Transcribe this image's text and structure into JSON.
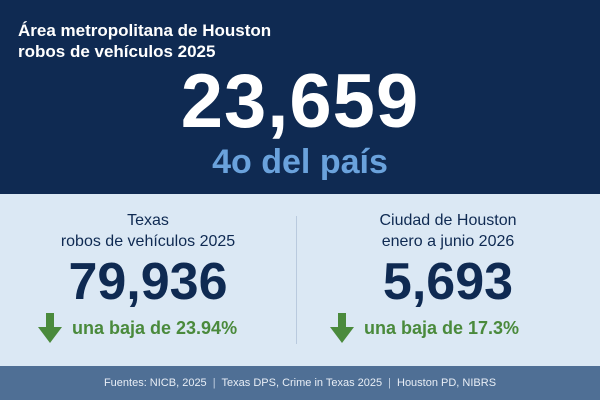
{
  "header": {
    "title_line1": "Área metropolitana de Houston",
    "title_line2": "robos de vehículos 2025",
    "value": "23,659",
    "rank": "4o del país"
  },
  "panels": [
    {
      "label_line1": "Texas",
      "label_line2": "robos de vehículos 2025",
      "value": "79,936",
      "change": "una baja de 23.94%",
      "change_icon": "arrow-down-icon",
      "change_color": "#4a8a3c"
    },
    {
      "label_line1": "Ciudad de Houston",
      "label_line2": "enero a junio 2026",
      "value": "5,693",
      "change": "una baja de 17.3%",
      "change_icon": "arrow-down-icon",
      "change_color": "#4a8a3c"
    }
  ],
  "footer": {
    "sources": [
      "Fuentes: NICB, 2025",
      "Texas DPS, Crime in Texas 2025",
      "Houston PD, NIBRS"
    ]
  },
  "colors": {
    "navy": "#0f2a52",
    "accent_blue": "#6aa2dc",
    "panel_bg": "#dbe8f4",
    "footer_bg": "#4f6f95",
    "green": "#4a8a3c"
  }
}
